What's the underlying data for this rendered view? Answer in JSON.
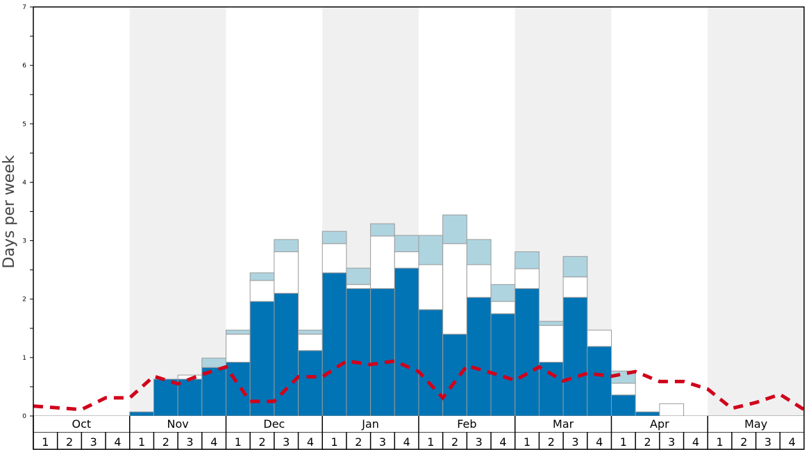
{
  "chart_data": {
    "type": "bar",
    "stacked": true,
    "title": "",
    "xlabel": "",
    "ylabel": "Days per week",
    "ylim": [
      0,
      7
    ],
    "yticks": [
      "0",
      "1",
      "2",
      "3",
      "4",
      "5",
      "6",
      "7"
    ],
    "months": [
      "Oct",
      "Nov",
      "Dec",
      "Jan",
      "Feb",
      "Mar",
      "Apr",
      "May"
    ],
    "week_labels": [
      "1",
      "2",
      "3",
      "4"
    ],
    "shaded_months": [
      "Nov",
      "Jan",
      "Mar",
      "May"
    ],
    "colors": {
      "dark": "#0174b5",
      "white": "#ffffff",
      "light": "#aed4e0",
      "line": "#d0021b",
      "shade": "#f0f0f0",
      "bar_border": "#9a9a9a"
    },
    "series": [
      {
        "name": "dark",
        "values": [
          0,
          0,
          0,
          0,
          0.07,
          0.63,
          0.63,
          0.83,
          0.92,
          1.96,
          2.1,
          1.12,
          2.45,
          2.18,
          2.18,
          2.53,
          1.82,
          1.4,
          2.03,
          1.75,
          2.18,
          0.92,
          2.03,
          1.19,
          0.36,
          0.07,
          0,
          0,
          0,
          0,
          0,
          0
        ]
      },
      {
        "name": "white",
        "values": [
          0,
          0,
          0,
          0,
          0,
          0,
          0.07,
          0,
          0.48,
          0.36,
          0.71,
          0.28,
          0.5,
          0.07,
          0.9,
          0.28,
          0.77,
          1.55,
          0.56,
          0.21,
          0.34,
          0.63,
          0.35,
          0.28,
          0.2,
          0,
          0.21,
          0,
          0,
          0,
          0,
          0
        ]
      },
      {
        "name": "light",
        "values": [
          0,
          0,
          0,
          0,
          0,
          0,
          0,
          0.16,
          0.07,
          0.13,
          0.21,
          0.07,
          0.21,
          0.28,
          0.21,
          0.28,
          0.5,
          0.49,
          0.43,
          0.29,
          0.29,
          0.07,
          0.35,
          0,
          0.21,
          0,
          0,
          0,
          0,
          0,
          0,
          0
        ]
      }
    ],
    "line": {
      "name": "dashed-average",
      "style": "dashed",
      "x_week_boundaries": [
        0,
        1,
        2,
        3,
        4,
        5,
        6,
        7,
        8,
        9,
        10,
        11,
        12,
        13,
        14,
        15,
        16,
        17,
        18,
        19,
        20,
        21,
        22,
        23,
        24,
        25,
        26,
        27,
        28,
        29,
        30,
        31,
        32
      ],
      "values": [
        0.17,
        0.14,
        0.11,
        0.31,
        0.31,
        0.68,
        0.55,
        0.71,
        0.84,
        0.25,
        0.25,
        0.67,
        0.67,
        0.94,
        0.88,
        0.94,
        0.76,
        0.31,
        0.86,
        0.74,
        0.61,
        0.84,
        0.6,
        0.73,
        0.68,
        0.76,
        0.59,
        0.59,
        0.46,
        0.13,
        0.23,
        0.37,
        0.11
      ]
    }
  }
}
